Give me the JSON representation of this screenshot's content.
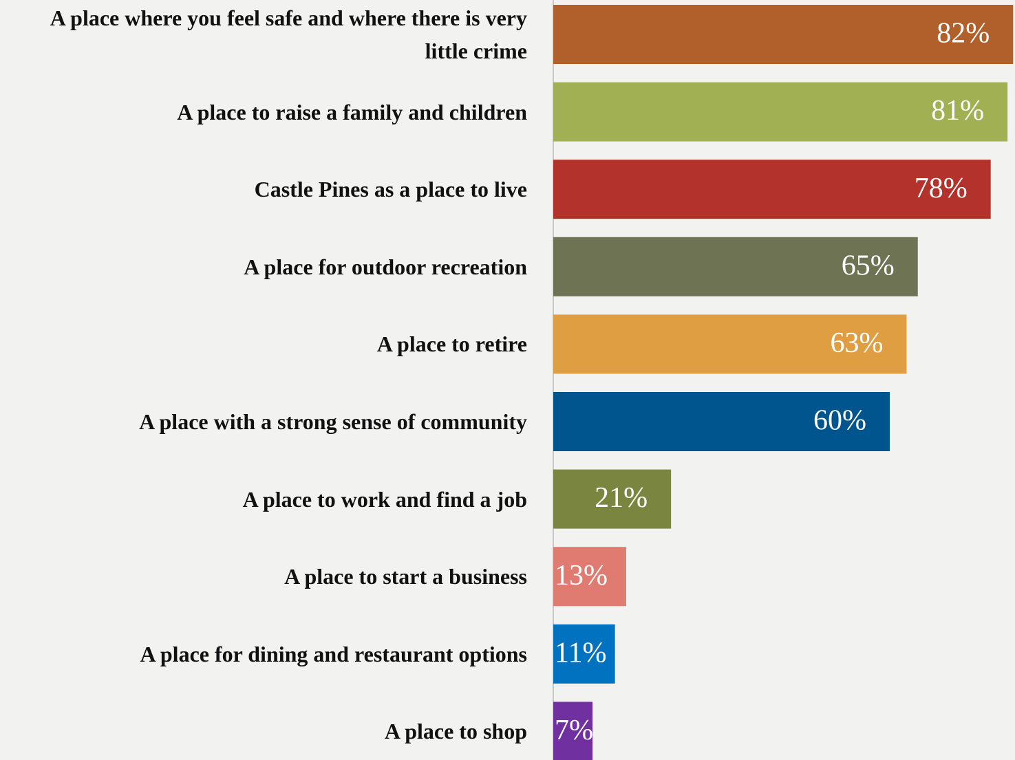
{
  "chart_data": {
    "type": "bar",
    "orientation": "horizontal",
    "categories": [
      "A place where you feel safe and where there is very little crime",
      "A place to raise a family and children",
      "Castle Pines as a place to live",
      "A place for outdoor recreation",
      "A place to retire",
      "A place with a strong sense of community",
      "A place to work and find a job",
      "A place to start a business",
      "A place for dining and restaurant options",
      "A place to shop"
    ],
    "values": [
      82,
      81,
      78,
      65,
      63,
      60,
      21,
      13,
      11,
      7
    ],
    "value_labels": [
      "82%",
      "81%",
      "78%",
      "65%",
      "63%",
      "60%",
      "21%",
      "13%",
      "11%",
      "7%"
    ],
    "colors": [
      "#b1602b",
      "#a0b053",
      "#b3322b",
      "#6e7353",
      "#e09e43",
      "#00558f",
      "#7a8640",
      "#e07b72",
      "#0072c0",
      "#7030a0"
    ],
    "xlim": [
      0,
      100
    ]
  }
}
